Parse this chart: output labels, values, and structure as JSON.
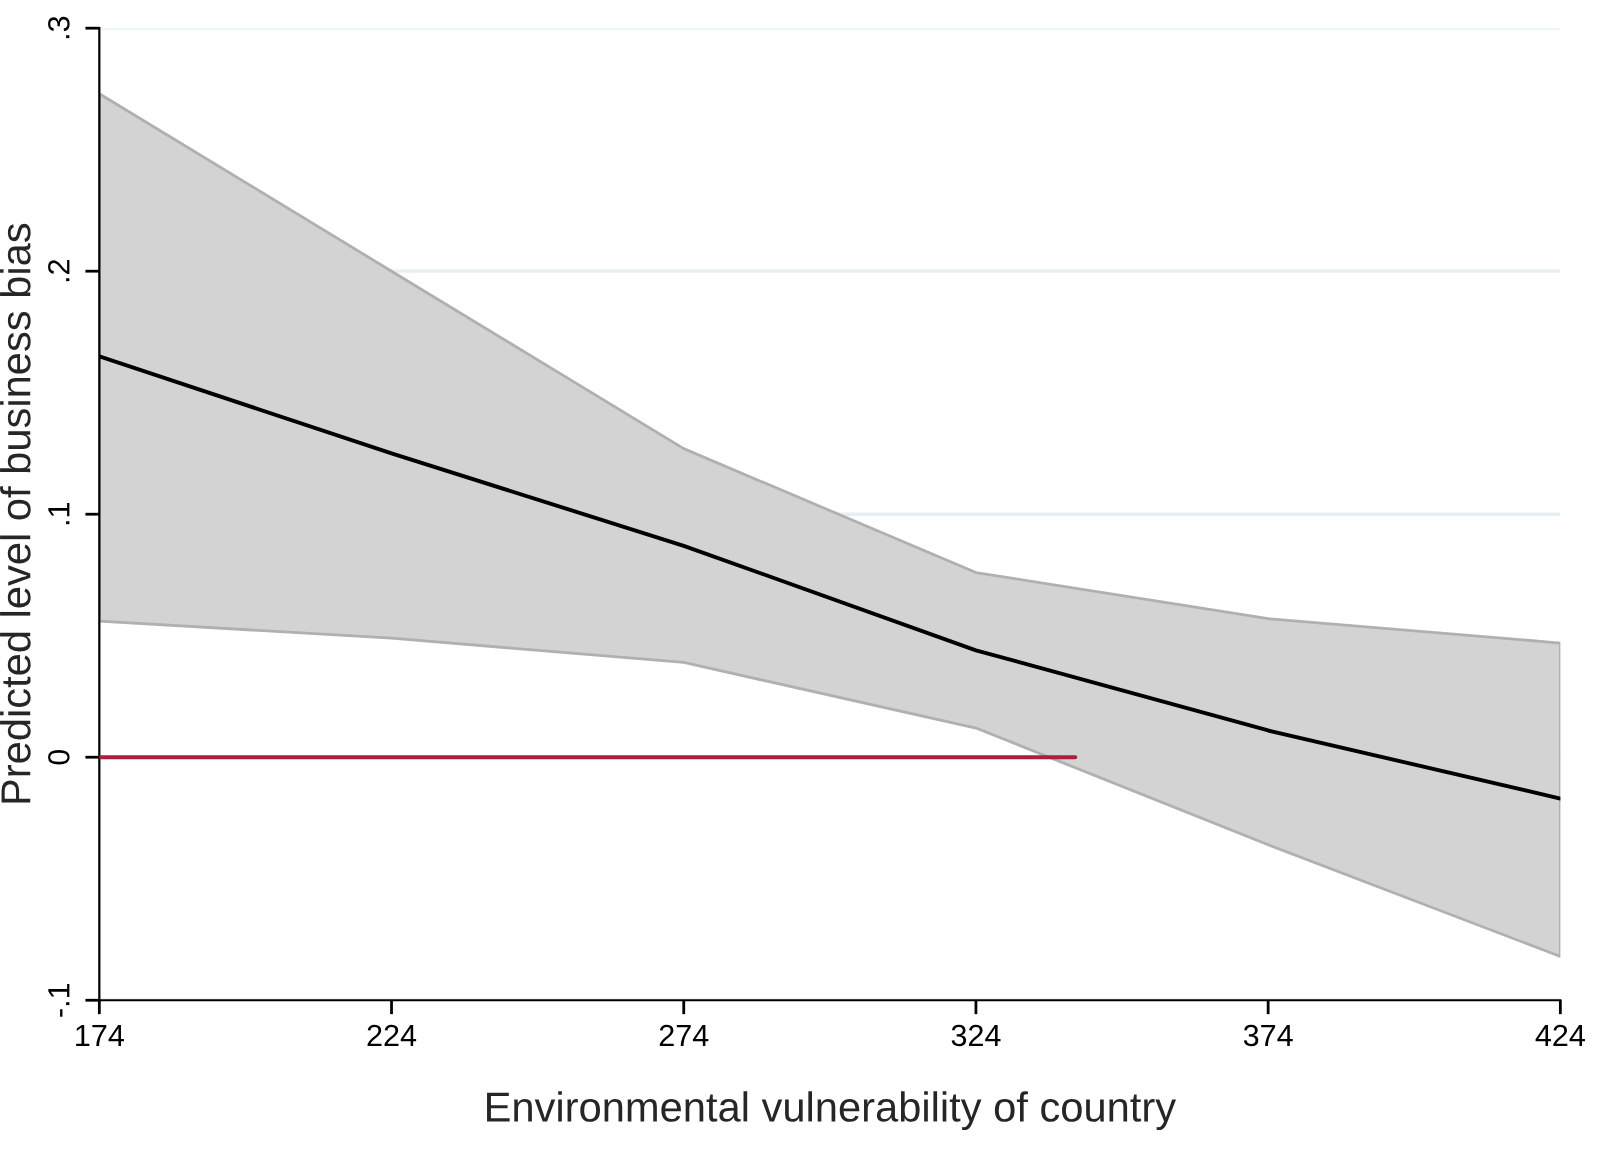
{
  "chart_data": {
    "type": "line",
    "xlabel": "Environmental vulnerability of country",
    "ylabel": "Predicted level of business bias",
    "x": [
      174,
      224,
      274,
      324,
      374,
      424
    ],
    "series": [
      {
        "color": "#000000",
        "values": [
          0.165,
          0.125,
          0.087,
          0.044,
          0.011,
          -0.017
        ],
        "lower": [
          0.056,
          0.049,
          0.039,
          0.012,
          -0.036,
          -0.082
        ],
        "upper": [
          0.273,
          0.2,
          0.127,
          0.076,
          0.057,
          0.047
        ]
      },
      {
        "color": "#a8203e",
        "x": [
          174,
          341
        ],
        "values": [
          0,
          0
        ]
      }
    ],
    "xlim": [
      174,
      424
    ],
    "xticks": [
      174,
      224,
      274,
      324,
      374,
      424
    ],
    "ylim": [
      -0.1,
      0.3
    ],
    "yticks": [
      {
        "value": -0.1,
        "label": "-.1"
      },
      {
        "value": 0,
        "label": "0"
      },
      {
        "value": 0.1,
        "label": ".1"
      },
      {
        "value": 0.2,
        "label": ".2"
      },
      {
        "value": 0.3,
        "label": ".3"
      }
    ],
    "grid": "y",
    "marker": "none",
    "line_style": "solid"
  }
}
